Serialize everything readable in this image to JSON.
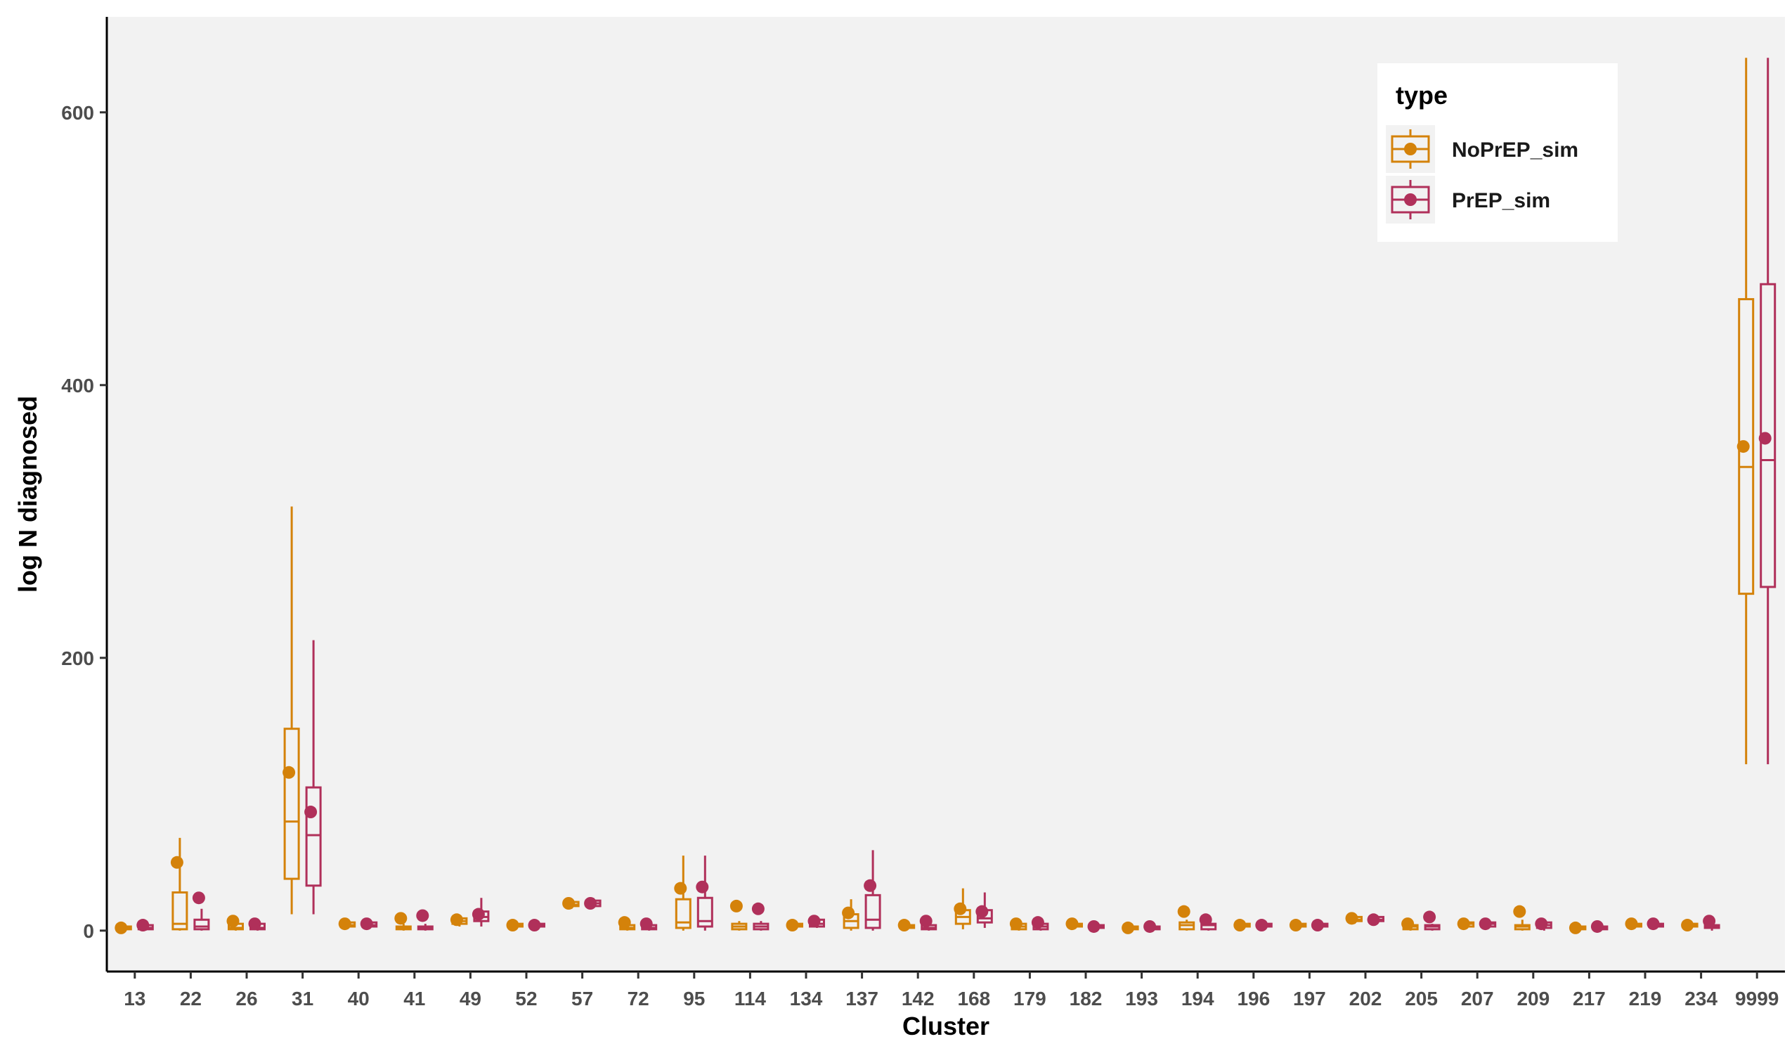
{
  "chart_data": {
    "type": "box",
    "xlabel": "Cluster",
    "ylabel": "log N diagnosed",
    "ylim": [
      -30,
      670
    ],
    "yticks": [
      0,
      200,
      400,
      600
    ],
    "grid": false,
    "legend": {
      "title": "type",
      "placement": "top-right"
    },
    "colors": {
      "NoPrEP_sim": "#D4820A",
      "PrEP_sim": "#B0305A",
      "panel": "#F2F2F2"
    },
    "categories": [
      "13",
      "22",
      "26",
      "31",
      "40",
      "41",
      "49",
      "52",
      "57",
      "72",
      "95",
      "114",
      "134",
      "137",
      "142",
      "168",
      "179",
      "182",
      "193",
      "194",
      "196",
      "197",
      "202",
      "205",
      "207",
      "209",
      "217",
      "219",
      "234",
      "9999"
    ],
    "series": [
      {
        "name": "NoPrEP_sim",
        "mean": [
          2,
          50,
          7,
          116,
          5,
          9,
          8,
          4,
          20,
          6,
          31,
          18,
          4,
          13,
          4,
          16,
          5,
          5,
          2,
          14,
          4,
          4,
          9,
          5,
          5,
          14,
          2,
          5,
          4,
          355
        ],
        "q1": [
          1,
          1,
          1,
          38,
          3,
          1,
          5,
          3,
          18,
          1,
          2,
          1,
          3,
          2,
          2,
          5,
          1,
          3,
          1,
          1,
          3,
          3,
          7,
          1,
          3,
          1,
          1,
          3,
          3,
          247
        ],
        "median": [
          2,
          5,
          2,
          80,
          4,
          2,
          7,
          4,
          19,
          2,
          6,
          3,
          4,
          7,
          3,
          10,
          3,
          4,
          2,
          4,
          4,
          4,
          8,
          3,
          5,
          3,
          2,
          4,
          4,
          340
        ],
        "q3": [
          3,
          28,
          5,
          148,
          6,
          3,
          9,
          5,
          21,
          4,
          23,
          5,
          5,
          12,
          4,
          15,
          5,
          5,
          3,
          6,
          5,
          5,
          10,
          4,
          6,
          4,
          3,
          5,
          5,
          463
        ],
        "min": [
          0,
          0,
          0,
          12,
          2,
          0,
          3,
          2,
          16,
          0,
          0,
          0,
          2,
          0,
          1,
          1,
          0,
          2,
          0,
          0,
          2,
          2,
          5,
          0,
          2,
          0,
          0,
          2,
          2,
          122
        ],
        "max": [
          4,
          68,
          9,
          311,
          8,
          5,
          11,
          6,
          23,
          6,
          55,
          7,
          7,
          23,
          6,
          31,
          7,
          6,
          4,
          8,
          6,
          6,
          11,
          6,
          8,
          8,
          4,
          6,
          6,
          640
        ]
      },
      {
        "name": "PrEP_sim",
        "mean": [
          4,
          24,
          5,
          87,
          5,
          11,
          12,
          4,
          20,
          5,
          32,
          16,
          7,
          33,
          7,
          14,
          6,
          3,
          3,
          8,
          4,
          4,
          8,
          10,
          5,
          5,
          3,
          5,
          7,
          361
        ],
        "q1": [
          1,
          1,
          1,
          33,
          3,
          1,
          7,
          3,
          18,
          1,
          3,
          1,
          3,
          2,
          1,
          6,
          1,
          2,
          1,
          1,
          3,
          3,
          7,
          1,
          3,
          2,
          1,
          3,
          2,
          252
        ],
        "median": [
          2,
          3,
          2,
          70,
          4,
          2,
          10,
          4,
          20,
          2,
          7,
          3,
          5,
          8,
          2,
          9,
          3,
          3,
          2,
          4,
          4,
          4,
          8,
          3,
          5,
          4,
          2,
          4,
          3,
          345
        ],
        "q3": [
          4,
          8,
          5,
          105,
          6,
          3,
          14,
          5,
          22,
          4,
          24,
          5,
          8,
          26,
          4,
          15,
          5,
          4,
          3,
          5,
          5,
          5,
          10,
          4,
          6,
          6,
          3,
          5,
          4,
          474
        ],
        "min": [
          0,
          0,
          0,
          12,
          2,
          0,
          3,
          2,
          17,
          0,
          0,
          0,
          2,
          0,
          0,
          2,
          0,
          1,
          0,
          0,
          2,
          2,
          6,
          0,
          2,
          0,
          0,
          2,
          0,
          122
        ],
        "max": [
          6,
          16,
          7,
          213,
          8,
          5,
          24,
          6,
          24,
          6,
          55,
          7,
          10,
          59,
          6,
          28,
          7,
          5,
          5,
          7,
          6,
          6,
          11,
          5,
          8,
          7,
          5,
          7,
          6,
          640
        ]
      }
    ]
  }
}
